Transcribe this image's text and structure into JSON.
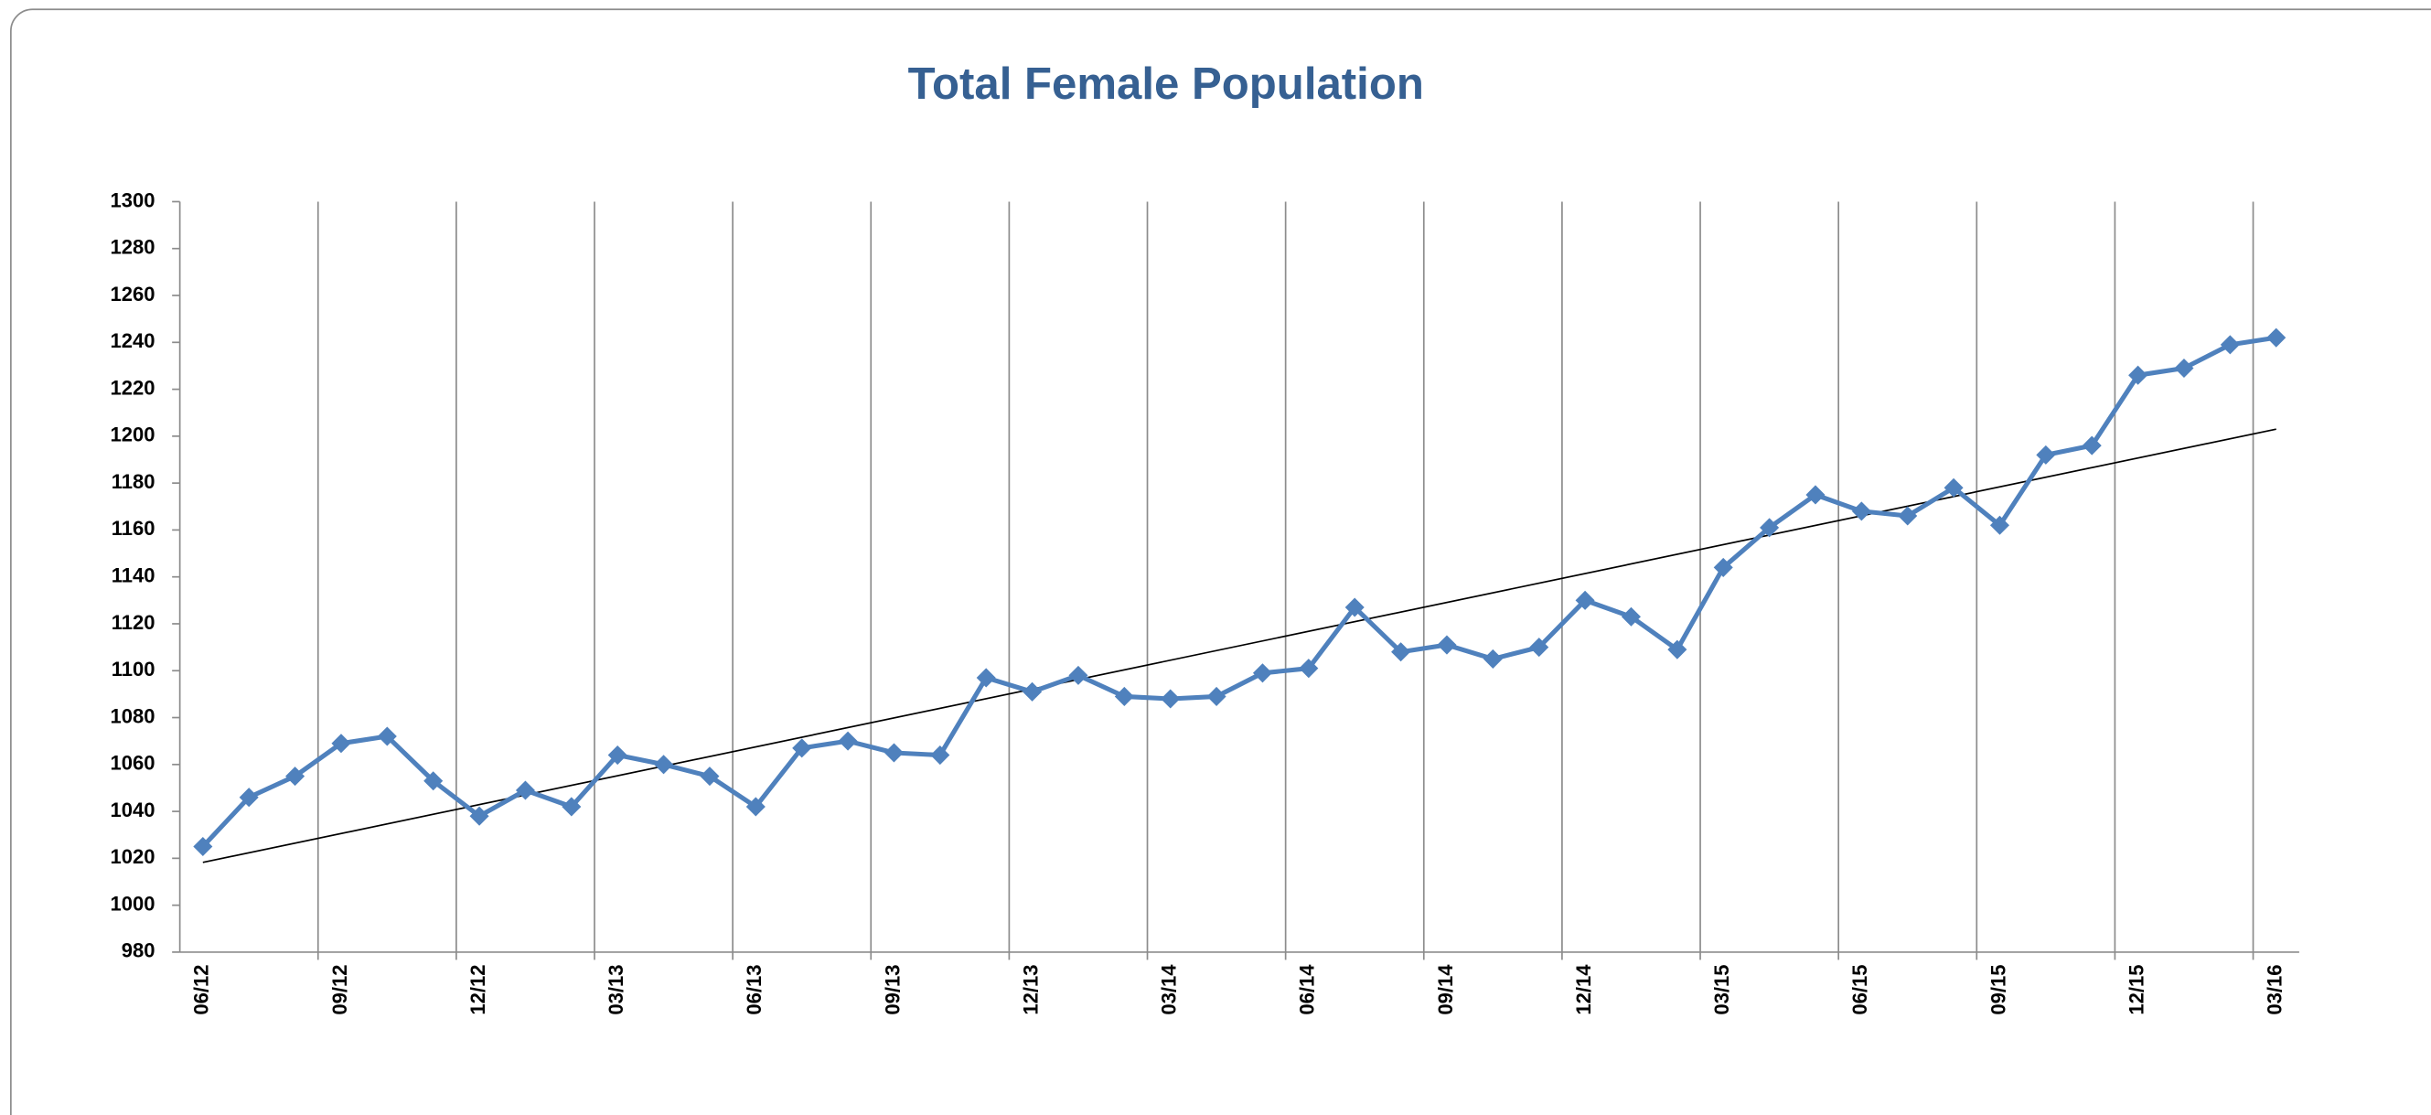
{
  "chart_data": {
    "type": "line",
    "title": "Total Female Population",
    "categories": [
      "06/12",
      null,
      null,
      "09/12",
      null,
      null,
      "12/12",
      null,
      null,
      "03/13",
      null,
      null,
      "06/13",
      null,
      null,
      "09/13",
      null,
      null,
      "12/13",
      null,
      null,
      "03/14",
      null,
      null,
      "06/14",
      null,
      null,
      "09/14",
      null,
      null,
      "12/14",
      null,
      null,
      "03/15",
      null,
      null,
      "06/15",
      null,
      null,
      "09/15",
      null,
      null,
      "12/15",
      null,
      null,
      "03/16"
    ],
    "values": [
      1025,
      1046,
      1055,
      1069,
      1072,
      1053,
      1038,
      1049,
      1042,
      1064,
      1060,
      1055,
      1042,
      1067,
      1070,
      1065,
      1064,
      1097,
      1091,
      1098,
      1089,
      1088,
      1089,
      1099,
      1101,
      1127,
      1108,
      1111,
      1105,
      1110,
      1130,
      1123,
      1109,
      1144,
      1161,
      1175,
      1168,
      1166,
      1178,
      1162,
      1192,
      1196,
      1226,
      1229,
      1239,
      1242
    ],
    "color": "#4f81bd",
    "trendline": "linear",
    "ylim": [
      980,
      1300
    ],
    "yticks": [
      980,
      1000,
      1020,
      1040,
      1060,
      1080,
      1100,
      1120,
      1140,
      1160,
      1180,
      1200,
      1220,
      1240,
      1260,
      1280,
      1300
    ],
    "grid": true
  }
}
